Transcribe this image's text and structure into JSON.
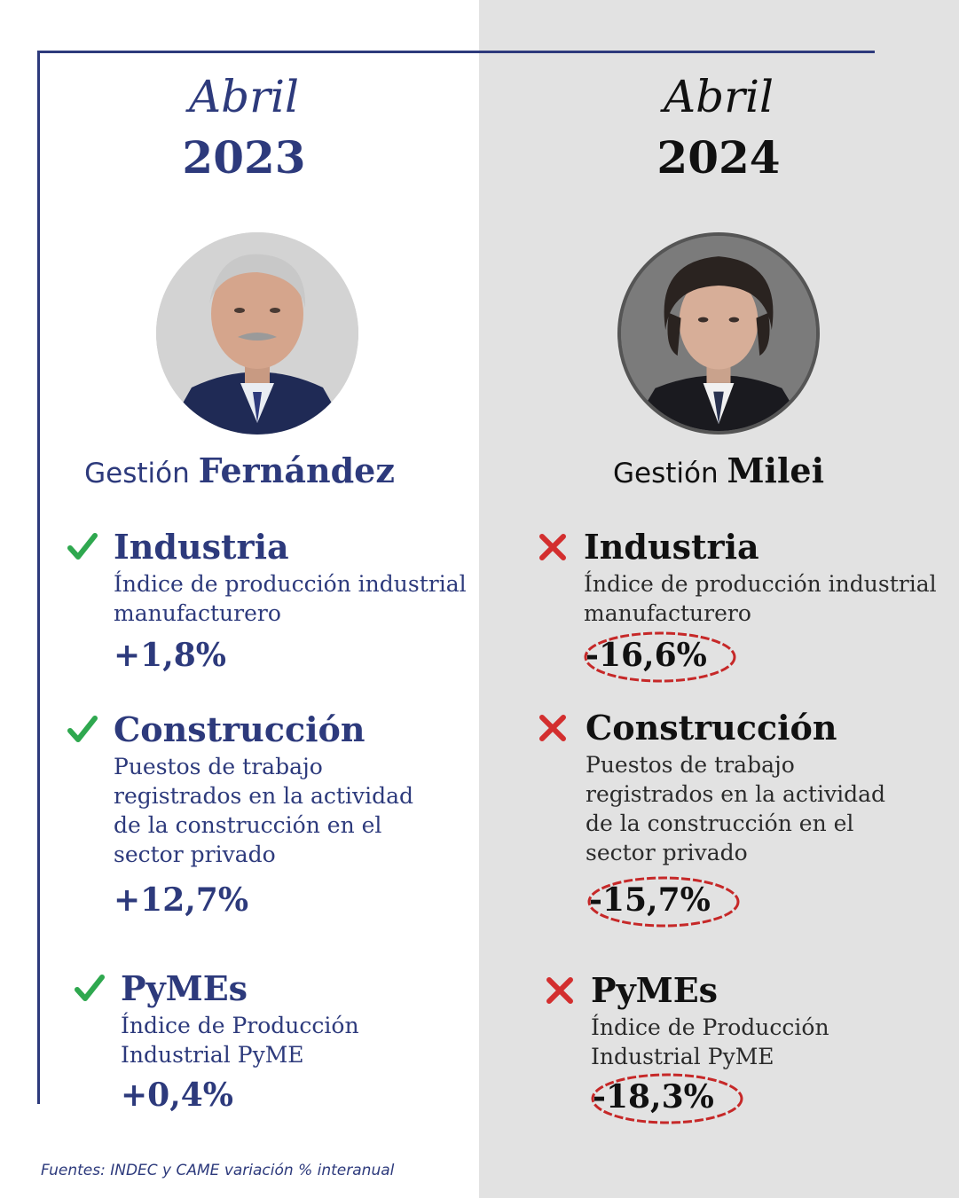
{
  "colors": {
    "left_accent": "#2d3a7c",
    "right_text": "#111111",
    "right_background": "#e2e2e2",
    "check_green": "#2fa84f",
    "cross_red": "#d32f2f"
  },
  "left": {
    "month": "Abril",
    "year": "2023",
    "gestion_prefix": "Gestión",
    "gestion_name": "Fernández",
    "portrait_icon": "politician-portrait-icon",
    "items": [
      {
        "mark": "check-icon",
        "title": "Industria",
        "desc_lines": [
          "Índice de producción industrial",
          "manufacturero"
        ],
        "value": "+1,8%"
      },
      {
        "mark": "check-icon",
        "title": "Construcción",
        "desc_lines": [
          "Puestos de trabajo",
          "registrados en la actividad",
          "de la construcción en el",
          "sector privado"
        ],
        "value": "+12,7%"
      },
      {
        "mark": "check-icon",
        "title": "PyMEs",
        "desc_lines": [
          "Índice de Producción",
          "Industrial PyME"
        ],
        "value": "+0,4%"
      }
    ]
  },
  "right": {
    "month": "Abril",
    "year": "2024",
    "gestion_prefix": "Gestión",
    "gestion_name": "Milei",
    "portrait_icon": "politician-portrait-icon",
    "items": [
      {
        "mark": "cross-icon",
        "title": "Industria",
        "desc_lines": [
          "Índice de producción industrial",
          "manufacturero"
        ],
        "value": "-16,6%"
      },
      {
        "mark": "cross-icon",
        "title": "Construcción",
        "desc_lines": [
          "Puestos de trabajo",
          "registrados en la actividad",
          "de la construcción en el",
          "sector privado"
        ],
        "value": "-15,7%"
      },
      {
        "mark": "cross-icon",
        "title": "PyMEs",
        "desc_lines": [
          "Índice de Producción",
          "Industrial PyME"
        ],
        "value": "-18,3%"
      }
    ]
  },
  "footer": {
    "sources": "Fuentes: INDEC y CAME variación % interanual"
  }
}
